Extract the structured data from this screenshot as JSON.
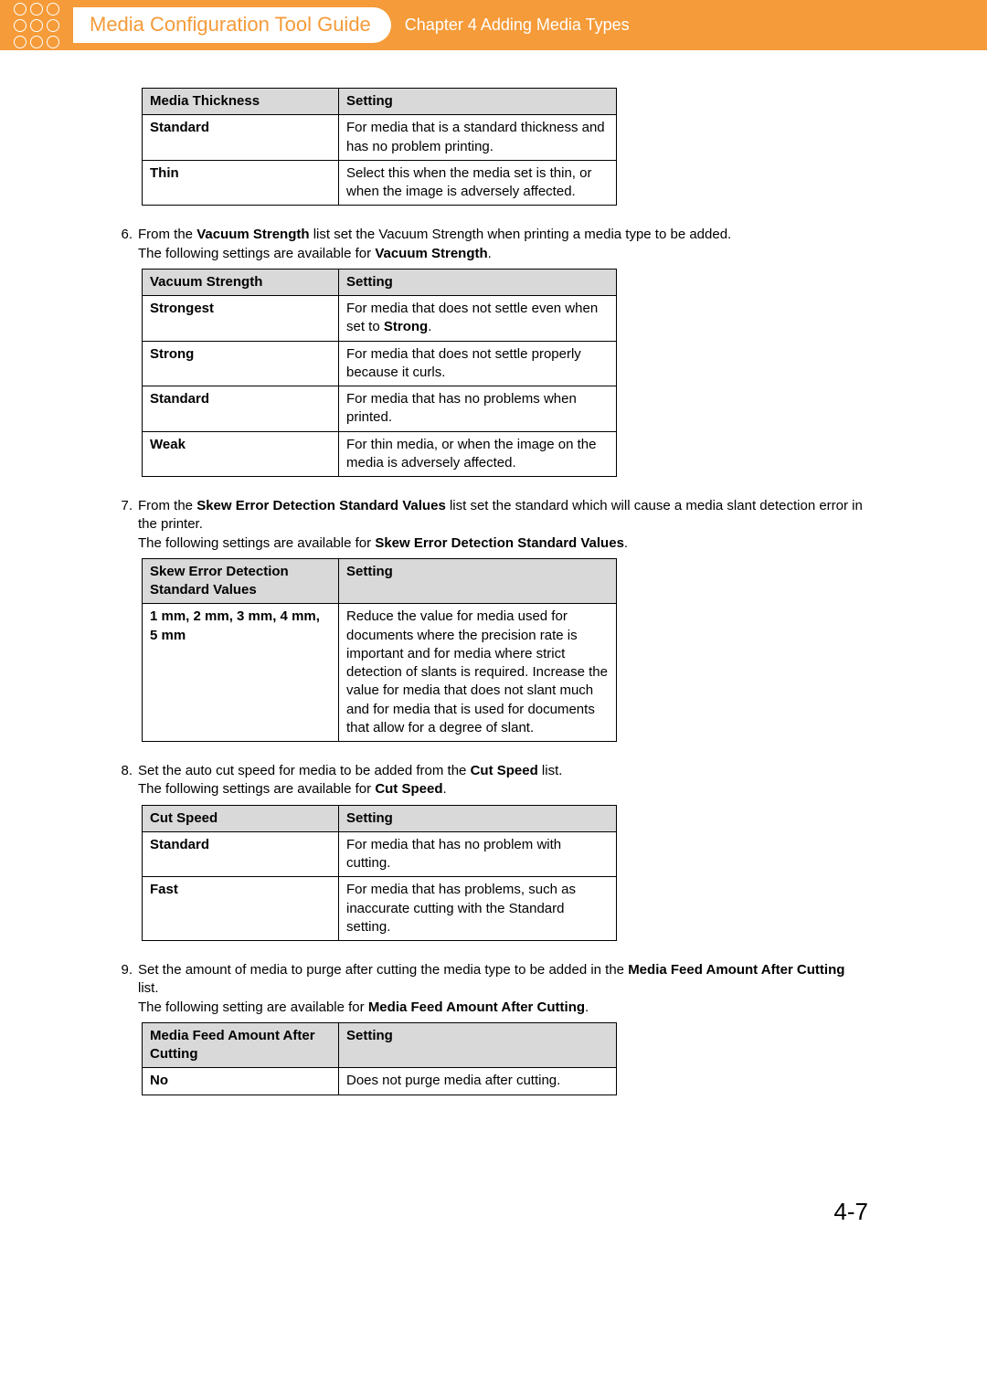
{
  "header": {
    "title": "Media Configuration Tool Guide",
    "chapter": "Chapter 4    Adding Media Types"
  },
  "page_number": "4-7",
  "table1": {
    "h1": "Media Thickness",
    "h2": "Setting",
    "rows": [
      {
        "k": "Standard",
        "v": "For media that is a standard thickness and has no problem printing."
      },
      {
        "k": "Thin",
        "v": "Select this when the media set is thin, or when the image is adversely affected."
      }
    ]
  },
  "step6": {
    "num": "6.",
    "line1a": "From the ",
    "line1b": "Vacuum Strength",
    "line1c": " list set the Vacuum Strength when printing a media type to be added.",
    "line2a": "The following settings are available for ",
    "line2b": "Vacuum Strength",
    "line2c": "."
  },
  "table2": {
    "h1": "Vacuum Strength",
    "h2": "Setting",
    "rows": [
      {
        "k": "Strongest",
        "va": "For media that does not settle even when set to ",
        "vb": "Strong",
        "vc": "."
      },
      {
        "k": "Strong",
        "va": "For media that does not settle properly because it curls.",
        "vb": "",
        "vc": ""
      },
      {
        "k": "Standard",
        "va": "For media that has no problems when printed.",
        "vb": "",
        "vc": ""
      },
      {
        "k": "Weak",
        "va": "For thin media, or when the image on the media is adversely affected.",
        "vb": "",
        "vc": ""
      }
    ]
  },
  "step7": {
    "num": "7.",
    "line1a": "From the ",
    "line1b": "Skew Error Detection Standard Values",
    "line1c": " list set the standard which will cause a media slant detection error in the printer.",
    "line2a": "The following settings are available for ",
    "line2b": "Skew Error Detection Standard Values",
    "line2c": "."
  },
  "table3": {
    "h1": "Skew Error Detection Standard Values",
    "h2": "Setting",
    "rows": [
      {
        "k": "1 mm, 2 mm, 3 mm, 4 mm, 5 mm",
        "v": "Reduce the value for media used for documents where the precision rate is important and for media where strict detection of slants is required. Increase the value for media that does not slant much and for media that is used for documents that allow for a degree of slant."
      }
    ]
  },
  "step8": {
    "num": "8.",
    "line1a": "Set the auto cut speed for media to be added from the ",
    "line1b": "Cut Speed",
    "line1c": " list.",
    "line2a": "The following settings are available for ",
    "line2b": "Cut Speed",
    "line2c": "."
  },
  "table4": {
    "h1": "Cut Speed",
    "h2": "Setting",
    "rows": [
      {
        "k": "Standard",
        "v": "For media that has no problem with cutting."
      },
      {
        "k": "Fast",
        "v": "For media that has problems, such as inaccurate cutting with the Standard setting."
      }
    ]
  },
  "step9": {
    "num": "9.",
    "line1a": "Set the amount of media to purge after cutting the media type to be added in the ",
    "line1b": "Media Feed Amount After Cutting",
    "line1c": " list.",
    "line2a": "The following setting are available for ",
    "line2b": "Media Feed Amount After Cutting",
    "line2c": "."
  },
  "table5": {
    "h1": "Media Feed Amount After Cutting",
    "h2": "Setting",
    "rows": [
      {
        "k": "No",
        "v": "Does not purge media after cutting."
      }
    ]
  }
}
